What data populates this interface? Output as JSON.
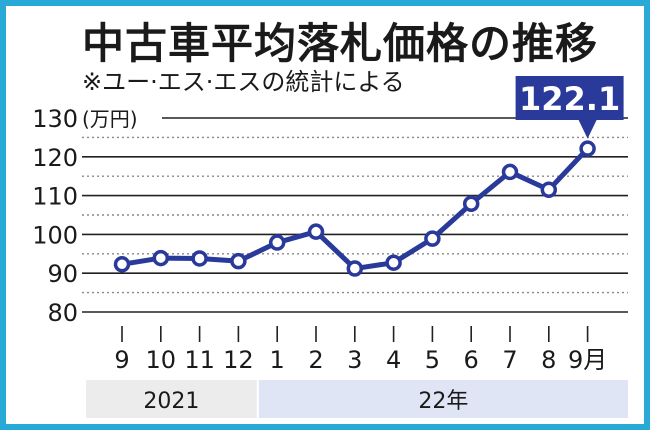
{
  "title": "中古車平均落札価格の推移",
  "subtitle": "※ユー·エス·エスの統計による",
  "colors": {
    "border": "#29a9d6",
    "line": "#2a3a9a",
    "year_bar_2021": "#ececec",
    "year_bar_22": "#dfe5f4"
  },
  "chart_data": {
    "type": "line",
    "title": "中古車平均落札価格の推移",
    "subtitle": "※ユー·エス·エスの統計による",
    "unit_label": "(万円)",
    "y_ticks": [
      80,
      90,
      100,
      110,
      120,
      130
    ],
    "ylim": [
      80,
      130
    ],
    "categories": [
      "9",
      "10",
      "11",
      "12",
      "1",
      "2",
      "3",
      "4",
      "5",
      "6",
      "7",
      "8",
      "9月"
    ],
    "year_groups": [
      {
        "label": "2021",
        "categories": 4
      },
      {
        "label": "22年",
        "categories": 9
      }
    ],
    "series": [
      {
        "values": [
          92.3,
          93.9,
          93.8,
          93.1,
          97.9,
          100.7,
          91.2,
          92.7,
          98.9,
          107.9,
          116.1,
          111.5,
          122.1
        ]
      }
    ],
    "callout": {
      "index": 12,
      "text": "122.1"
    },
    "grid": true
  }
}
